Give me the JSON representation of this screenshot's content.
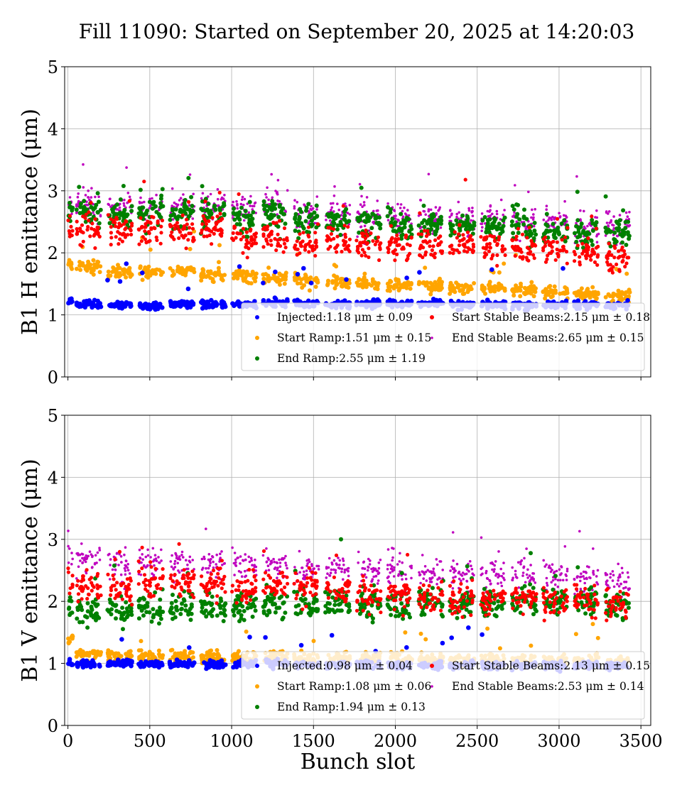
{
  "title": "Fill 11090: Started on September 20, 2025 at 14:20:03",
  "chart_data": [
    {
      "type": "scatter",
      "ylabel": "B1 H emittance (μm)",
      "xlabel": "",
      "xlim": [
        -20,
        3560
      ],
      "ylim": [
        0,
        5
      ],
      "x_ticks": [
        0,
        500,
        1000,
        1500,
        2000,
        2500,
        3000,
        3500
      ],
      "x_tick_labels_shown": false,
      "y_ticks": [
        "0",
        "1",
        "2",
        "3",
        "4",
        "5"
      ],
      "grid": true,
      "legend_placement": "lower-right",
      "bunch_slot_ranges": [
        [
          0,
          30
        ],
        [
          52,
          202
        ],
        [
          242,
          392
        ],
        [
          432,
          582
        ],
        [
          622,
          772
        ],
        [
          812,
          962
        ],
        [
          1002,
          1152
        ],
        [
          1192,
          1342
        ],
        [
          1382,
          1532
        ],
        [
          1572,
          1722
        ],
        [
          1762,
          1912
        ],
        [
          1952,
          2102
        ],
        [
          2142,
          2292
        ],
        [
          2332,
          2482
        ],
        [
          2522,
          2672
        ],
        [
          2712,
          2862
        ],
        [
          2902,
          3052
        ],
        [
          3092,
          3242
        ],
        [
          3282,
          3432
        ]
      ],
      "series": [
        {
          "name": "Injected",
          "legend": "Injected:1.18 μm ± 0.09",
          "color": "#0000ff",
          "batch_means": [
            1.22,
            1.17,
            1.16,
            1.14,
            1.18,
            1.17,
            1.18,
            1.18,
            1.17,
            1.16,
            1.17,
            1.18,
            1.17,
            1.16,
            1.17,
            1.16,
            1.16,
            1.16,
            1.16
          ]
        },
        {
          "name": "Start Ramp",
          "legend": "Start Ramp:1.51 μm ± 0.15",
          "color": "#ffa500",
          "batch_means": [
            1.82,
            1.78,
            1.68,
            1.68,
            1.7,
            1.66,
            1.63,
            1.6,
            1.56,
            1.52,
            1.5,
            1.47,
            1.46,
            1.43,
            1.42,
            1.4,
            1.37,
            1.34,
            1.3
          ]
        },
        {
          "name": "End Ramp",
          "legend": "End Ramp:2.55 μm ± 1.19",
          "color": "#008000",
          "batch_means": [
            2.7,
            2.62,
            2.6,
            2.62,
            2.65,
            2.62,
            2.55,
            2.62,
            2.55,
            2.5,
            2.48,
            2.45,
            2.45,
            2.42,
            2.4,
            2.4,
            2.35,
            2.32,
            2.3
          ]
        },
        {
          "name": "Start Stable Beams",
          "legend": "Start Stable Beams:2.15 μm ± 0.18",
          "color": "#ff0000",
          "batch_means": [
            2.4,
            2.38,
            2.35,
            2.4,
            2.35,
            2.4,
            2.22,
            2.25,
            2.15,
            2.2,
            2.15,
            2.12,
            2.1,
            2.15,
            2.08,
            2.1,
            2.02,
            1.97,
            1.9
          ]
        },
        {
          "name": "End Stable Beams",
          "legend": "End Stable Beams:2.65 μm ± 0.15",
          "color": "#bf00bf",
          "batch_means": [
            2.85,
            2.78,
            2.72,
            2.72,
            2.78,
            2.75,
            2.72,
            2.75,
            2.62,
            2.6,
            2.6,
            2.58,
            2.57,
            2.55,
            2.55,
            2.5,
            2.48,
            2.45,
            2.42
          ]
        }
      ]
    },
    {
      "type": "scatter",
      "ylabel": "B1 V emittance (μm)",
      "xlabel": "Bunch slot",
      "xlim": [
        -20,
        3560
      ],
      "ylim": [
        0,
        5
      ],
      "x_ticks": [
        "0",
        "500",
        "1000",
        "1500",
        "2000",
        "2500",
        "3000",
        "3500"
      ],
      "y_ticks": [
        "0",
        "1",
        "2",
        "3",
        "4",
        "5"
      ],
      "grid": true,
      "legend_placement": "lower-right",
      "bunch_slot_ranges": [
        [
          0,
          30
        ],
        [
          52,
          202
        ],
        [
          242,
          392
        ],
        [
          432,
          582
        ],
        [
          622,
          772
        ],
        [
          812,
          962
        ],
        [
          1002,
          1152
        ],
        [
          1192,
          1342
        ],
        [
          1382,
          1532
        ],
        [
          1572,
          1722
        ],
        [
          1762,
          1912
        ],
        [
          1952,
          2102
        ],
        [
          2142,
          2292
        ],
        [
          2332,
          2482
        ],
        [
          2522,
          2672
        ],
        [
          2712,
          2862
        ],
        [
          2902,
          3052
        ],
        [
          3092,
          3242
        ],
        [
          3282,
          3432
        ]
      ],
      "series": [
        {
          "name": "Injected",
          "legend": "Injected:0.98 μm ± 0.04",
          "color": "#0000ff",
          "batch_means": [
            1.02,
            0.99,
            1.0,
            0.98,
            0.99,
            0.98,
            0.99,
            0.99,
            0.98,
            0.98,
            0.98,
            0.97,
            0.97,
            0.97,
            0.97,
            0.97,
            0.97,
            0.97,
            0.97
          ]
        },
        {
          "name": "Start Ramp",
          "legend": "Start Ramp:1.08 μm ± 0.06",
          "color": "#ffa500",
          "batch_means": [
            1.4,
            1.15,
            1.12,
            1.1,
            1.12,
            1.12,
            1.1,
            1.1,
            1.09,
            1.08,
            1.07,
            1.06,
            1.06,
            1.06,
            1.05,
            1.05,
            1.04,
            1.04,
            1.03
          ]
        },
        {
          "name": "End Ramp",
          "legend": "End Ramp:1.94 μm ± 0.13",
          "color": "#008000",
          "batch_means": [
            1.9,
            1.8,
            1.85,
            1.88,
            1.9,
            1.95,
            1.92,
            1.95,
            1.95,
            1.97,
            1.95,
            1.93,
            1.95,
            1.95,
            1.95,
            2.0,
            2.0,
            2.0,
            1.95
          ]
        },
        {
          "name": "Start Stable Beams",
          "legend": "Start Stable Beams:2.13 μm ± 0.15",
          "color": "#ff0000",
          "batch_means": [
            2.3,
            2.25,
            2.22,
            2.25,
            2.28,
            2.25,
            2.2,
            2.22,
            2.2,
            2.15,
            2.12,
            2.1,
            2.05,
            2.05,
            2.05,
            2.05,
            2.0,
            2.0,
            1.97
          ]
        },
        {
          "name": "End Stable Beams",
          "legend": "End Stable Beams:2.53 μm ± 0.14",
          "color": "#bf00bf",
          "batch_means": [
            2.68,
            2.68,
            2.6,
            2.62,
            2.62,
            2.6,
            2.58,
            2.6,
            2.5,
            2.52,
            2.5,
            2.48,
            2.47,
            2.45,
            2.42,
            2.42,
            2.4,
            2.38,
            2.35
          ]
        }
      ]
    }
  ]
}
